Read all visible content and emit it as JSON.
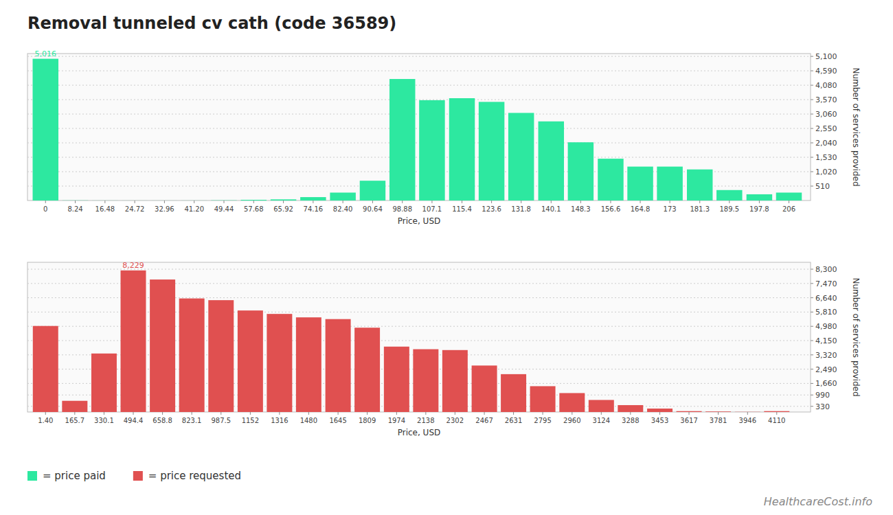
{
  "chart_data": [
    {
      "type": "bar",
      "title": "Removal tunneled cv cath (code 36589)",
      "x": [
        0,
        8.24,
        16.48,
        24.72,
        32.96,
        41.2,
        49.44,
        57.68,
        65.92,
        74.16,
        82.4,
        90.64,
        98.88,
        107.1,
        115.4,
        123.6,
        131.8,
        140.1,
        148.3,
        156.6,
        164.8,
        173,
        181.3,
        189.5,
        197.8,
        206
      ],
      "series": [
        {
          "name": "= price paid",
          "color": "#2de8a0",
          "values": [
            5016,
            5,
            2,
            1,
            1,
            2,
            8,
            25,
            40,
            120,
            280,
            700,
            4300,
            3550,
            3620,
            3490,
            3100,
            2800,
            2060,
            1480,
            1200,
            1200,
            1100,
            370,
            220,
            280
          ]
        }
      ],
      "xlim": [
        -5,
        212
      ],
      "ylim": [
        0,
        5200
      ],
      "xticks": [
        0,
        8.24,
        16.48,
        24.72,
        32.96,
        {
          "value": 41.2,
          "label": "41.20"
        },
        49.44,
        57.68,
        65.92,
        74.16,
        {
          "value": 82.4,
          "label": "82.40"
        },
        90.64,
        98.88,
        107.1,
        115.4,
        123.6,
        131.8,
        140.1,
        148.3,
        156.6,
        164.8,
        173,
        181.3,
        189.5,
        197.8,
        206
      ],
      "yticks": [
        510,
        {
          "value": 1020,
          "label": "1,020"
        },
        {
          "value": 1530,
          "label": "1,530"
        },
        {
          "value": 2040,
          "label": "2,040"
        },
        {
          "value": 2550,
          "label": "2,550"
        },
        {
          "value": 3060,
          "label": "3,060"
        },
        {
          "value": 3570,
          "label": "3,570"
        },
        {
          "value": 4080,
          "label": "4,080"
        },
        {
          "value": 4590,
          "label": "4,590"
        },
        {
          "value": 5100,
          "label": "5,100"
        }
      ],
      "xlabel": "Price, USD",
      "ylabel": "Number of services provided",
      "grid": true,
      "legend": "lower left",
      "annotations": [
        {
          "text": "5,016",
          "x": 0,
          "y": 5016
        }
      ]
    },
    {
      "type": "bar",
      "x": [
        1.4,
        165.7,
        330.1,
        494.4,
        658.8,
        823.1,
        987.5,
        1152,
        1316,
        1480,
        1645,
        1809,
        1974,
        2138,
        2302,
        2467,
        2631,
        2795,
        2960,
        3124,
        3288,
        3453,
        3617,
        3781,
        3946,
        4110
      ],
      "series": [
        {
          "name": "= price requested",
          "color": "#e05050",
          "values": [
            5000,
            650,
            3400,
            8229,
            7700,
            6600,
            6500,
            5900,
            5700,
            5500,
            5400,
            4900,
            3800,
            3650,
            3600,
            2700,
            2200,
            1500,
            1100,
            700,
            400,
            200,
            50,
            30,
            10,
            50
          ]
        }
      ],
      "xlim": [
        -100,
        4300
      ],
      "ylim": [
        0,
        8700
      ],
      "xticks": [
        {
          "value": 1.4,
          "label": "1.40"
        },
        165.7,
        330.1,
        494.4,
        658.8,
        823.1,
        987.5,
        1152,
        1316,
        1480,
        1645,
        1809,
        1974,
        2138,
        2302,
        2467,
        2631,
        2795,
        2960,
        3124,
        3288,
        3453,
        3617,
        3781,
        3946,
        4110
      ],
      "yticks": [
        330,
        990,
        {
          "value": 1660,
          "label": "1,660"
        },
        {
          "value": 2490,
          "label": "2,490"
        },
        {
          "value": 3320,
          "label": "3,320"
        },
        {
          "value": 4150,
          "label": "4,150"
        },
        {
          "value": 4980,
          "label": "4,980"
        },
        {
          "value": 5810,
          "label": "5,810"
        },
        {
          "value": 6640,
          "label": "6,640"
        },
        {
          "value": 7470,
          "label": "7,470"
        },
        {
          "value": 8300,
          "label": "8,300"
        }
      ],
      "xlabel": "Price, USD",
      "ylabel": "Number of services provided",
      "grid": true,
      "legend": "lower left",
      "annotations": [
        {
          "text": "8,229",
          "x": 494.4,
          "y": 8229
        },
        {
          "text": "HealthcareCost.info"
        }
      ]
    }
  ]
}
